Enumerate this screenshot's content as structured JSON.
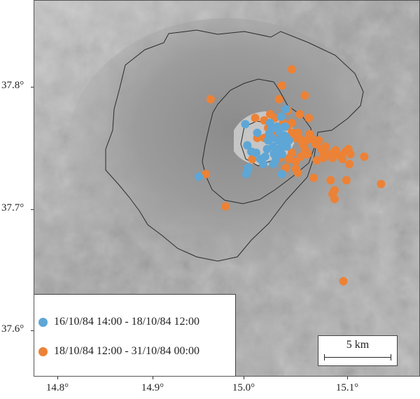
{
  "axes": {
    "y_ticks": [
      {
        "value": 37.8,
        "label": "37.8°"
      },
      {
        "value": 37.7,
        "label": "37.7°"
      },
      {
        "value": 37.6,
        "label": "37.6°"
      }
    ],
    "x_ticks": [
      {
        "value": 14.8,
        "label": "14.8°"
      },
      {
        "value": 14.9,
        "label": "14.9°"
      },
      {
        "value": 15.0,
        "label": "15.0°"
      },
      {
        "value": 15.1,
        "label": "15.1°"
      }
    ],
    "lon_range": [
      14.78,
      15.17
    ],
    "lat_range": [
      37.565,
      37.867
    ]
  },
  "legend": {
    "position": "bottom-left",
    "items": [
      {
        "label": "16/10/84 14:00 - 18/10/84 12:00",
        "color": "#5ea6d6"
      },
      {
        "label": "18/10/84 12:00 - 31/10/84 00:00",
        "color": "#ec8236"
      }
    ]
  },
  "scale_bar": {
    "label": "5 km",
    "position": "bottom-right"
  },
  "colors": {
    "terrain_base": "#a9a9a9",
    "outline": "#2a2a2a"
  },
  "chart_data": {
    "type": "scatter",
    "xlim": [
      14.78,
      15.17
    ],
    "ylim": [
      37.565,
      37.867
    ],
    "series": [
      {
        "name": "16/10/84 14:00 - 18/10/84 12:00",
        "color": "#5ea6d6",
        "points": [
          [
            14.946,
            37.726
          ],
          [
            14.994,
            37.728
          ],
          [
            14.995,
            37.731
          ],
          [
            14.996,
            37.733
          ],
          [
            14.999,
            37.746
          ],
          [
            14.995,
            37.751
          ],
          [
            14.993,
            37.768
          ],
          [
            15.005,
            37.761
          ],
          [
            15.004,
            37.745
          ],
          [
            15.008,
            37.74
          ],
          [
            15.011,
            37.736
          ],
          [
            15.013,
            37.742
          ],
          [
            15.015,
            37.748
          ],
          [
            15.016,
            37.755
          ],
          [
            15.017,
            37.76
          ],
          [
            15.019,
            37.764
          ],
          [
            15.02,
            37.757
          ],
          [
            15.021,
            37.75
          ],
          [
            15.022,
            37.744
          ],
          [
            15.024,
            37.74
          ],
          [
            15.025,
            37.748
          ],
          [
            15.026,
            37.755
          ],
          [
            15.027,
            37.762
          ],
          [
            15.028,
            37.756
          ],
          [
            15.029,
            37.749
          ],
          [
            15.03,
            37.744
          ],
          [
            15.031,
            37.752
          ],
          [
            15.032,
            37.759
          ],
          [
            15.033,
            37.766
          ],
          [
            15.034,
            37.758
          ],
          [
            15.035,
            37.75
          ],
          [
            15.037,
            37.755
          ],
          [
            15.029,
            37.774
          ],
          [
            15.034,
            37.78
          ],
          [
            15.03,
            37.728
          ],
          [
            15.021,
            37.736
          ],
          [
            15.018,
            37.769
          ],
          [
            15.025,
            37.766
          ]
        ]
      },
      {
        "name": "18/10/84 12:00 - 31/10/84 00:00",
        "color": "#ec8236",
        "points": [
          [
            14.958,
            37.788
          ],
          [
            14.953,
            37.728
          ],
          [
            14.973,
            37.702
          ],
          [
            15.04,
            37.812
          ],
          [
            15.03,
            37.799
          ],
          [
            15.053,
            37.791
          ],
          [
            15.036,
            37.779
          ],
          [
            15.04,
            37.769
          ],
          [
            15.027,
            37.788
          ],
          [
            15.012,
            37.771
          ],
          [
            15.018,
            37.776
          ],
          [
            15.023,
            37.773
          ],
          [
            15.016,
            37.765
          ],
          [
            15.012,
            37.757
          ],
          [
            15.023,
            37.763
          ],
          [
            15.026,
            37.758
          ],
          [
            15.031,
            37.769
          ],
          [
            15.036,
            37.766
          ],
          [
            15.04,
            37.761
          ],
          [
            15.043,
            37.757
          ],
          [
            15.046,
            37.761
          ],
          [
            15.048,
            37.756
          ],
          [
            15.051,
            37.752
          ],
          [
            15.053,
            37.748
          ],
          [
            15.055,
            37.755
          ],
          [
            15.058,
            37.76
          ],
          [
            15.061,
            37.756
          ],
          [
            15.064,
            37.752
          ],
          [
            15.067,
            37.755
          ],
          [
            15.07,
            37.748
          ],
          [
            15.072,
            37.745
          ],
          [
            15.074,
            37.75
          ],
          [
            15.078,
            37.744
          ],
          [
            15.081,
            37.741
          ],
          [
            15.084,
            37.747
          ],
          [
            15.088,
            37.743
          ],
          [
            15.091,
            37.74
          ],
          [
            15.094,
            37.746
          ],
          [
            15.097,
            37.748
          ],
          [
            15.099,
            37.744
          ],
          [
            15.098,
            37.736
          ],
          [
            15.113,
            37.742
          ],
          [
            15.13,
            37.72
          ],
          [
            15.095,
            37.723
          ],
          [
            15.081,
            37.712
          ],
          [
            15.083,
            37.715
          ],
          [
            15.079,
            37.723
          ],
          [
            15.062,
            37.725
          ],
          [
            15.046,
            37.729
          ],
          [
            15.034,
            37.733
          ],
          [
            15.044,
            37.738
          ],
          [
            15.049,
            37.742
          ],
          [
            15.056,
            37.744
          ],
          [
            15.04,
            37.745
          ],
          [
            15.037,
            37.74
          ],
          [
            15.028,
            37.741
          ],
          [
            15.044,
            37.732
          ],
          [
            15.092,
            37.642
          ],
          [
            15.083,
            37.708
          ],
          [
            15.065,
            37.739
          ],
          [
            15.072,
            37.741
          ],
          [
            15.057,
            37.773
          ],
          [
            15.003,
            37.773
          ],
          [
            15.005,
            37.757
          ],
          [
            15.0,
            37.74
          ],
          [
            15.048,
            37.776
          ]
        ]
      }
    ]
  }
}
